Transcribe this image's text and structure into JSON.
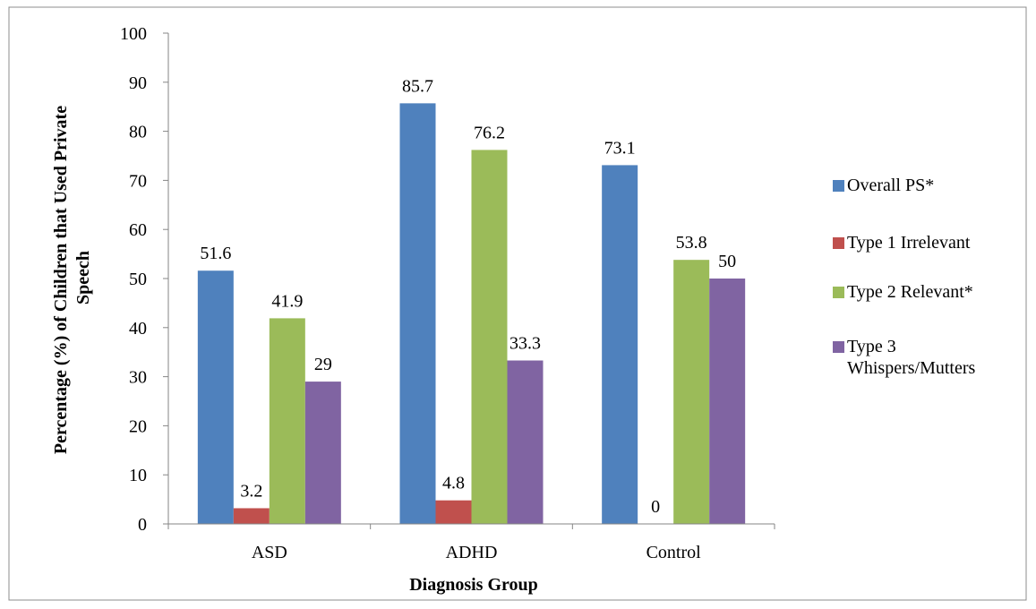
{
  "chart_data": {
    "type": "bar",
    "categories": [
      "ASD",
      "ADHD",
      "Control"
    ],
    "series": [
      {
        "name": "Overall PS*",
        "color": "#4F81BD",
        "values": [
          51.6,
          85.7,
          73.1
        ]
      },
      {
        "name": "Type 1 Irrelevant",
        "color": "#C0504D",
        "values": [
          3.2,
          4.8,
          0
        ]
      },
      {
        "name": "Type 2 Relevant*",
        "color": "#9BBB59",
        "values": [
          41.9,
          76.2,
          53.8
        ]
      },
      {
        "name": "Type 3 Whispers/Mutters",
        "color": "#8064A2",
        "values": [
          29,
          33.3,
          50
        ]
      }
    ],
    "data_labels": [
      [
        "51.6",
        "85.7",
        "73.1"
      ],
      [
        "3.2",
        "4.8",
        "0"
      ],
      [
        "41.9",
        "76.2",
        "53.8"
      ],
      [
        "29",
        "33.3",
        "50"
      ]
    ],
    "xlabel": "Diagnosis Group",
    "ylabel_lines": [
      "Percentage (%) of Children that Used Private",
      "Speech"
    ],
    "ylim": [
      0,
      100
    ],
    "yticks": [
      0,
      10,
      20,
      30,
      40,
      50,
      60,
      70,
      80,
      90,
      100
    ],
    "grid": false,
    "legend_position": "right",
    "legend": [
      {
        "lines": [
          "Overall PS*"
        ]
      },
      {
        "lines": [
          "Type 1 Irrelevant"
        ]
      },
      {
        "lines": [
          "Type 2 Relevant*"
        ]
      },
      {
        "lines": [
          "Type 3",
          "Whispers/Mutters"
        ]
      }
    ]
  }
}
